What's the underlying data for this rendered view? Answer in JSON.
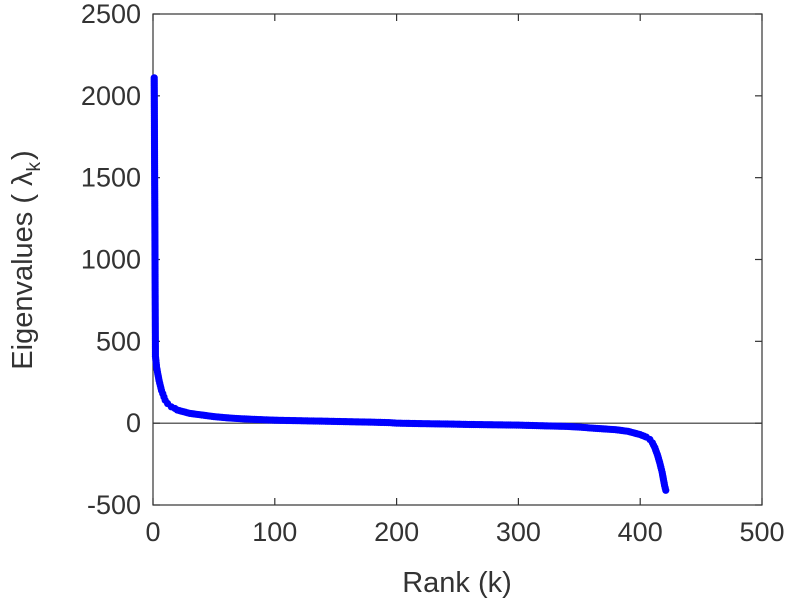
{
  "chart_data": {
    "type": "scatter",
    "xlabel": "Rank (k)",
    "ylabel": "Eigenvalues (  λ",
    "ylabel_subscript": "k",
    "ylabel_close": ")",
    "xlim": [
      0,
      500
    ],
    "ylim": [
      -500,
      2500
    ],
    "xticks": [
      0,
      100,
      200,
      300,
      400,
      500
    ],
    "xtick_labels": [
      "0",
      "100",
      "200",
      "300",
      "400",
      "500"
    ],
    "yticks": [
      -500,
      0,
      500,
      1000,
      1500,
      2000,
      2500
    ],
    "ytick_labels": [
      "-500",
      "0",
      "500",
      "1000",
      "1500",
      "2000",
      "2500"
    ],
    "zero_line": true,
    "grid": false,
    "series": [
      {
        "color": "#0000ff",
        "points": [
          [
            1,
            2110
          ],
          [
            2,
            410
          ],
          [
            3,
            340
          ],
          [
            4,
            300
          ],
          [
            5,
            260
          ],
          [
            6,
            230
          ],
          [
            7,
            200
          ],
          [
            8,
            180
          ],
          [
            9,
            160
          ],
          [
            10,
            140
          ],
          [
            12,
            120
          ],
          [
            15,
            100
          ],
          [
            18,
            90
          ],
          [
            20,
            80
          ],
          [
            25,
            70
          ],
          [
            30,
            60
          ],
          [
            35,
            55
          ],
          [
            40,
            50
          ],
          [
            50,
            40
          ],
          [
            60,
            33
          ],
          [
            70,
            28
          ],
          [
            80,
            24
          ],
          [
            90,
            21
          ],
          [
            100,
            18
          ],
          [
            120,
            15
          ],
          [
            140,
            12
          ],
          [
            160,
            9
          ],
          [
            180,
            6
          ],
          [
            195,
            3
          ],
          [
            200,
            0
          ],
          [
            220,
            -3
          ],
          [
            240,
            -5
          ],
          [
            260,
            -8
          ],
          [
            280,
            -10
          ],
          [
            300,
            -12
          ],
          [
            320,
            -16
          ],
          [
            340,
            -20
          ],
          [
            350,
            -24
          ],
          [
            360,
            -30
          ],
          [
            370,
            -35
          ],
          [
            380,
            -40
          ],
          [
            390,
            -50
          ],
          [
            395,
            -60
          ],
          [
            400,
            -70
          ],
          [
            405,
            -85
          ],
          [
            408,
            -100
          ],
          [
            410,
            -120
          ],
          [
            412,
            -150
          ],
          [
            414,
            -190
          ],
          [
            416,
            -240
          ],
          [
            418,
            -300
          ],
          [
            419,
            -340
          ],
          [
            420,
            -380
          ],
          [
            421,
            -410
          ]
        ]
      }
    ]
  }
}
